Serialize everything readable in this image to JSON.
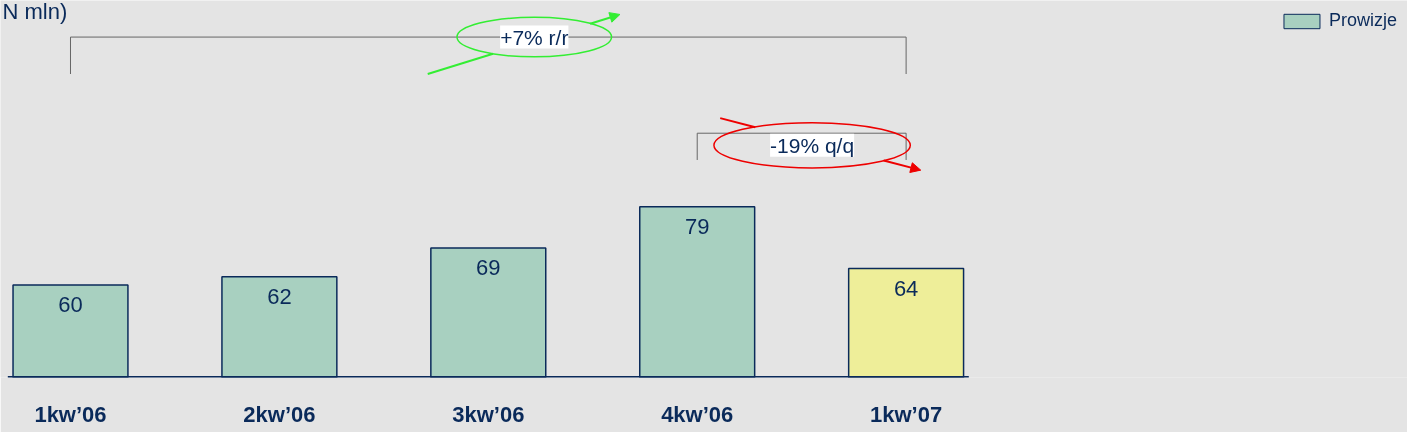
{
  "chart_data": {
    "type": "bar",
    "title": "N mln)",
    "categories": [
      "1kw’06",
      "2kw’06",
      "3kw’06",
      "4kw’06",
      "1kw’07"
    ],
    "series": [
      {
        "name": "Prowizje",
        "color": "#a8d0c0",
        "colors": [
          "#a8d0c0",
          "#a8d0c0",
          "#a8d0c0",
          "#a8d0c0",
          "#eeee99"
        ],
        "values": [
          60,
          62,
          69,
          79,
          64
        ]
      }
    ],
    "ylim": [
      37.6,
      129
    ],
    "data_labels": true,
    "legend": "top right",
    "tick_labels": "x",
    "annotations": [
      "+7% r/r",
      "-19% q/q"
    ]
  }
}
